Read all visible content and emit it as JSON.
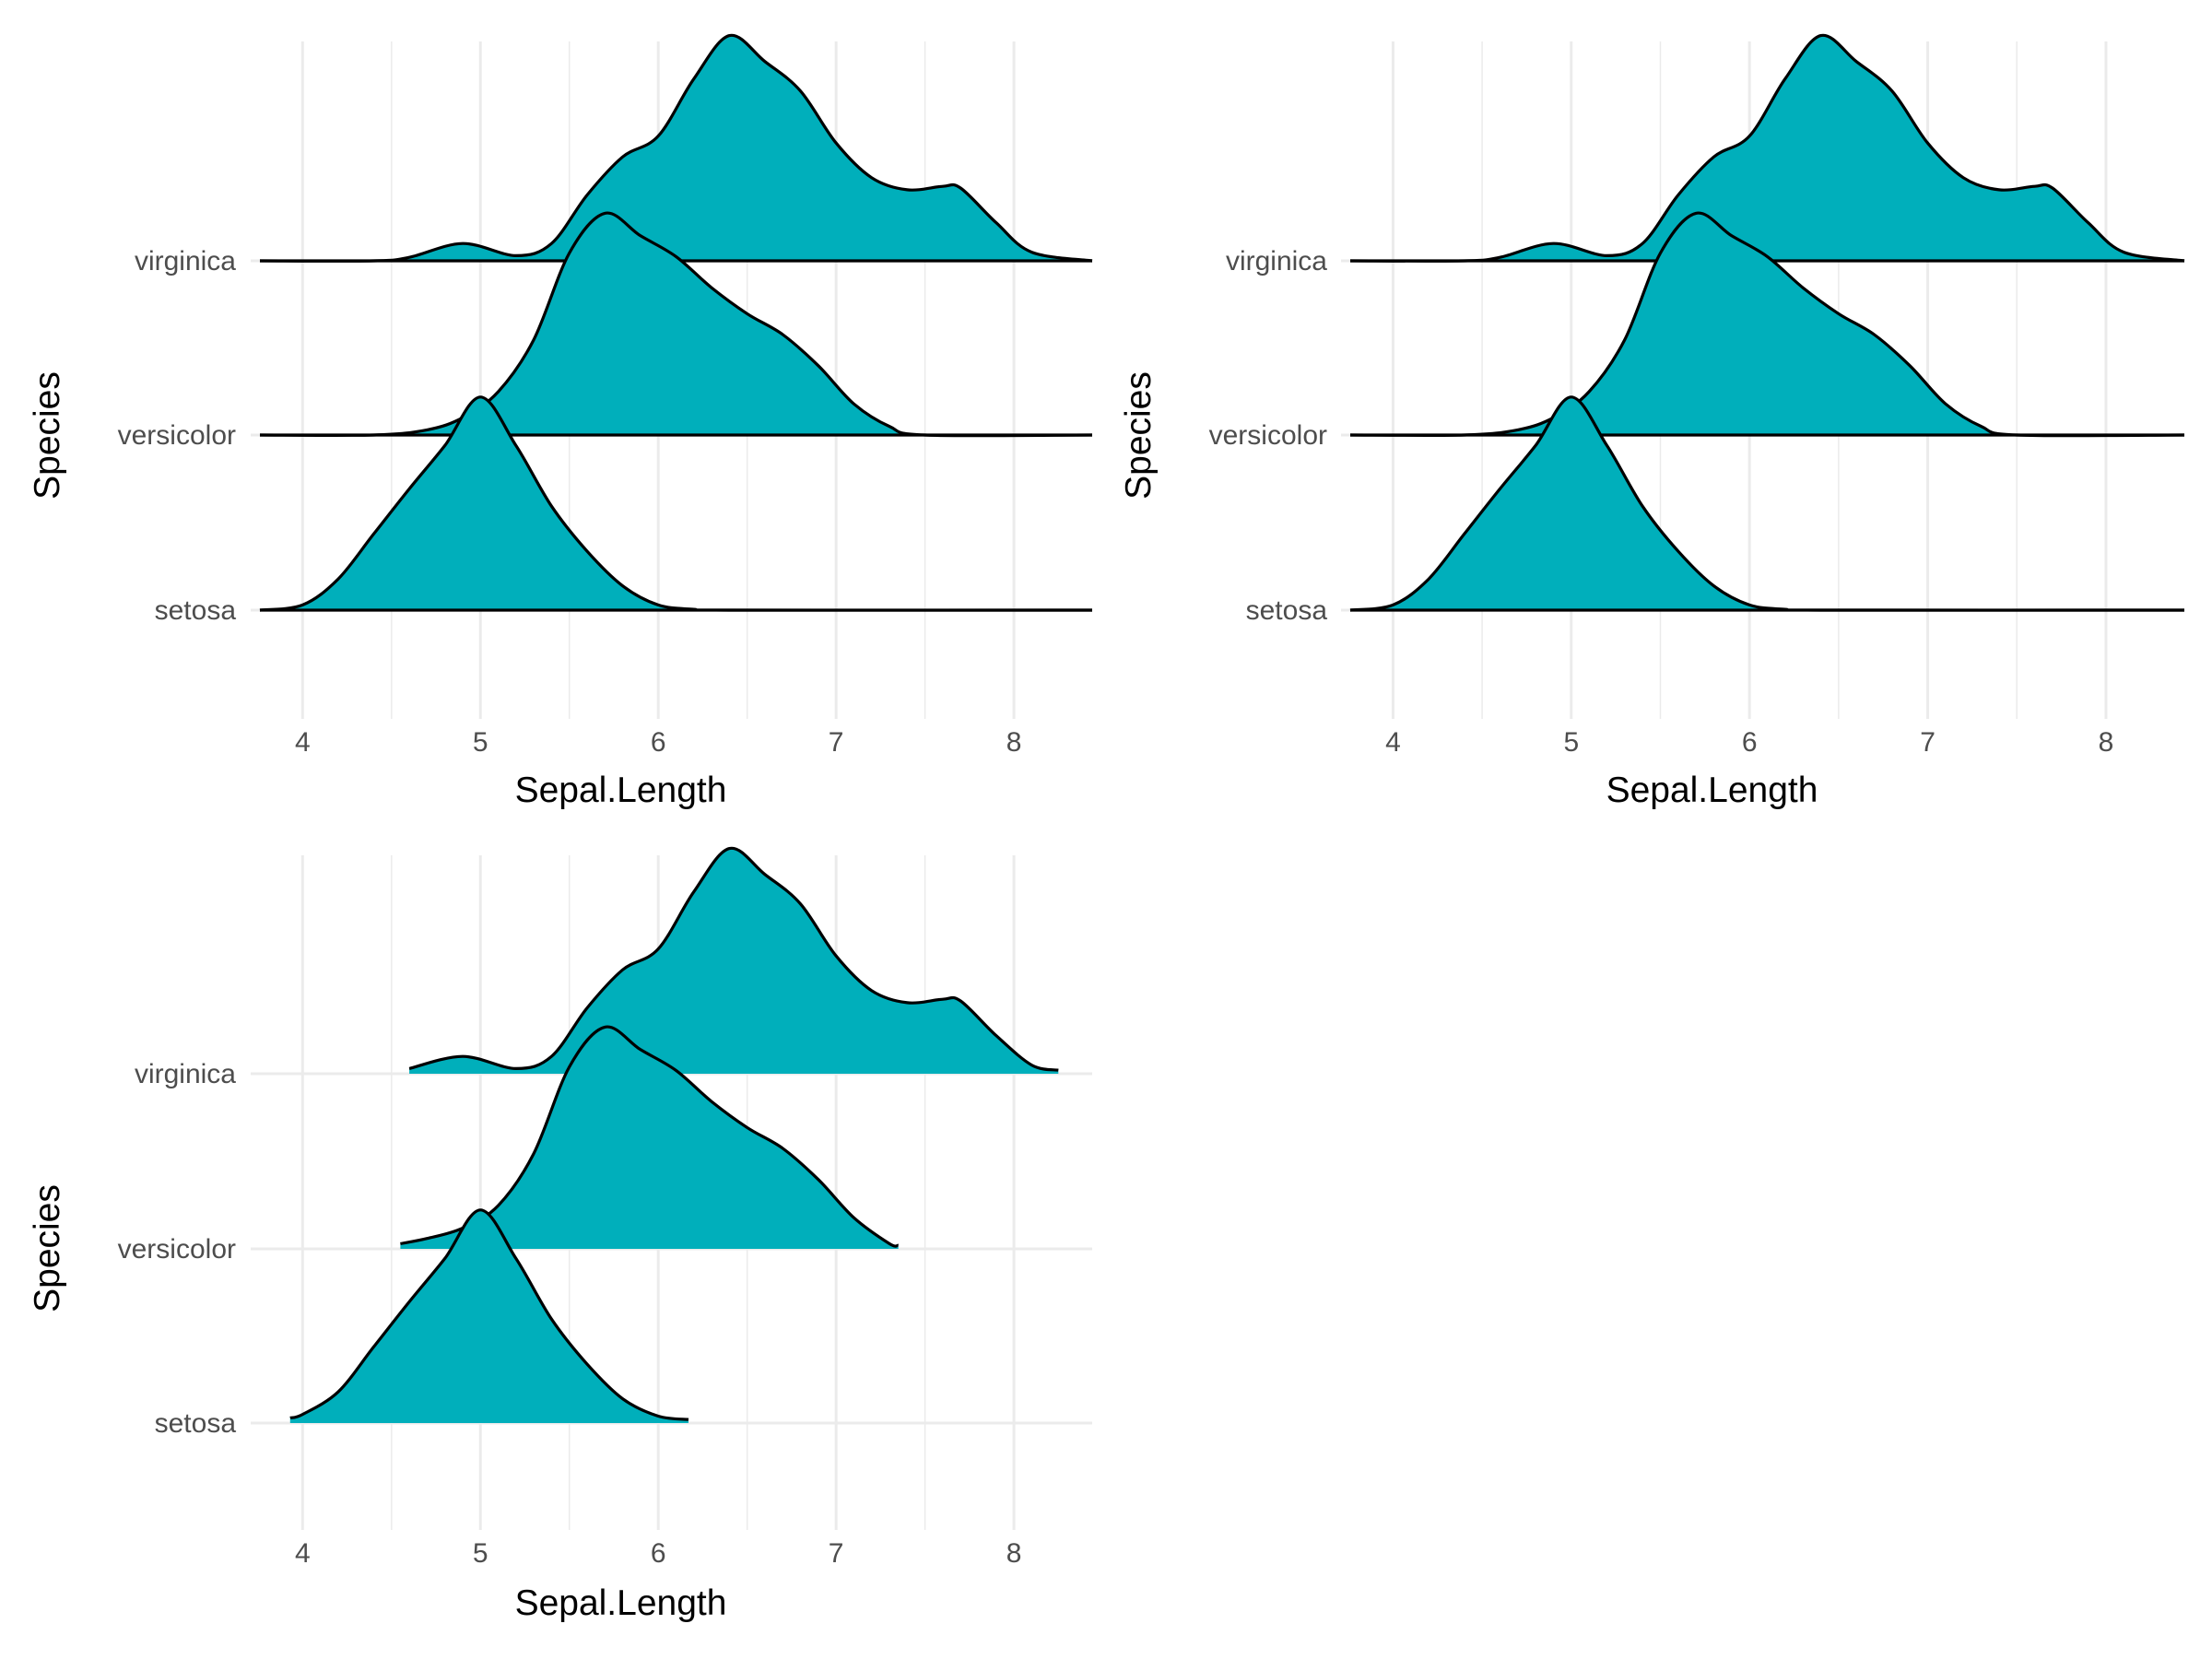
{
  "colors": {
    "fill": "#00AFBB",
    "outline": "#000000",
    "grid": "#EBEBEB",
    "tick_text": "#4D4D4D"
  },
  "chart_data": [
    {
      "type": "ridgeline",
      "variant": "full-range densities, baseline drawn",
      "xlabel": "Sepal.Length",
      "ylabel": "Species",
      "xlim": [
        3.76,
        8.44
      ],
      "x_ticks": [
        4,
        5,
        6,
        7,
        8
      ],
      "categories": [
        "setosa",
        "versicolor",
        "virginica"
      ],
      "grid": true,
      "fill_color": "#00AFBB",
      "series": [
        {
          "name": "setosa",
          "x": [
            3.76,
            4.0,
            4.2,
            4.4,
            4.6,
            4.8,
            5.0,
            5.2,
            5.4,
            5.6,
            5.8,
            6.0,
            6.2,
            6.4,
            8.44
          ],
          "density": [
            0.0,
            0.03,
            0.18,
            0.44,
            0.7,
            0.95,
            1.23,
            0.95,
            0.6,
            0.34,
            0.14,
            0.03,
            0.005,
            0.0,
            0.0
          ]
        },
        {
          "name": "versicolor",
          "x": [
            3.76,
            4.4,
            4.7,
            4.9,
            5.1,
            5.3,
            5.5,
            5.7,
            5.9,
            6.1,
            6.3,
            6.5,
            6.7,
            6.9,
            7.1,
            7.3,
            7.5,
            8.44
          ],
          "density": [
            0.0,
            0.0,
            0.03,
            0.1,
            0.25,
            0.55,
            1.05,
            1.28,
            1.15,
            1.03,
            0.85,
            0.7,
            0.58,
            0.4,
            0.18,
            0.05,
            0.0,
            0.0
          ]
        },
        {
          "name": "virginica",
          "x": [
            3.76,
            4.4,
            4.6,
            4.9,
            5.2,
            5.4,
            5.6,
            5.8,
            6.0,
            6.2,
            6.4,
            6.6,
            6.8,
            7.0,
            7.2,
            7.4,
            7.6,
            7.7,
            7.9,
            8.1,
            8.44
          ],
          "density": [
            0.0,
            0.0,
            0.02,
            0.1,
            0.03,
            0.1,
            0.38,
            0.6,
            0.72,
            1.05,
            1.3,
            1.15,
            0.98,
            0.68,
            0.48,
            0.41,
            0.43,
            0.42,
            0.22,
            0.05,
            0.0
          ]
        }
      ]
    },
    {
      "type": "ridgeline",
      "variant": "full-range densities, baseline drawn",
      "xlabel": "Sepal.Length",
      "ylabel": "Species",
      "xlim": [
        3.76,
        8.44
      ],
      "x_ticks": [
        4,
        5,
        6,
        7,
        8
      ],
      "categories": [
        "setosa",
        "versicolor",
        "virginica"
      ],
      "grid": true,
      "fill_color": "#00AFBB",
      "series": [
        {
          "name": "setosa",
          "x": [
            3.76,
            4.0,
            4.2,
            4.4,
            4.6,
            4.8,
            5.0,
            5.2,
            5.4,
            5.6,
            5.8,
            6.0,
            6.2,
            6.4,
            8.44
          ],
          "density": [
            0.0,
            0.03,
            0.18,
            0.44,
            0.7,
            0.95,
            1.23,
            0.95,
            0.6,
            0.34,
            0.14,
            0.03,
            0.005,
            0.0,
            0.0
          ]
        },
        {
          "name": "versicolor",
          "x": [
            3.76,
            4.4,
            4.7,
            4.9,
            5.1,
            5.3,
            5.5,
            5.7,
            5.9,
            6.1,
            6.3,
            6.5,
            6.7,
            6.9,
            7.1,
            7.3,
            7.5,
            8.44
          ],
          "density": [
            0.0,
            0.0,
            0.03,
            0.1,
            0.25,
            0.55,
            1.05,
            1.28,
            1.15,
            1.03,
            0.85,
            0.7,
            0.58,
            0.4,
            0.18,
            0.05,
            0.0,
            0.0
          ]
        },
        {
          "name": "virginica",
          "x": [
            3.76,
            4.4,
            4.6,
            4.9,
            5.2,
            5.4,
            5.6,
            5.8,
            6.0,
            6.2,
            6.4,
            6.6,
            6.8,
            7.0,
            7.2,
            7.4,
            7.6,
            7.7,
            7.9,
            8.1,
            8.44
          ],
          "density": [
            0.0,
            0.0,
            0.02,
            0.1,
            0.03,
            0.1,
            0.38,
            0.6,
            0.72,
            1.05,
            1.3,
            1.15,
            0.98,
            0.68,
            0.48,
            0.41,
            0.43,
            0.42,
            0.22,
            0.05,
            0.0
          ]
        }
      ]
    },
    {
      "type": "ridgeline",
      "variant": "densities trimmed to data range",
      "xlabel": "Sepal.Length",
      "ylabel": "Species",
      "xlim": [
        3.76,
        8.44
      ],
      "x_ticks": [
        4,
        5,
        6,
        7,
        8
      ],
      "categories": [
        "setosa",
        "versicolor",
        "virginica"
      ],
      "grid": true,
      "fill_color": "#00AFBB",
      "series": [
        {
          "name": "setosa",
          "x": [
            3.93,
            4.0,
            4.2,
            4.4,
            4.6,
            4.8,
            5.0,
            5.2,
            5.4,
            5.6,
            5.8,
            6.0,
            6.17
          ],
          "density": [
            0.03,
            0.05,
            0.18,
            0.44,
            0.7,
            0.95,
            1.23,
            0.95,
            0.6,
            0.34,
            0.14,
            0.04,
            0.02
          ]
        },
        {
          "name": "versicolor",
          "x": [
            4.55,
            4.7,
            4.9,
            5.1,
            5.3,
            5.5,
            5.7,
            5.9,
            6.1,
            6.3,
            6.5,
            6.7,
            6.9,
            7.1,
            7.3,
            7.35
          ],
          "density": [
            0.03,
            0.06,
            0.12,
            0.25,
            0.55,
            1.05,
            1.28,
            1.15,
            1.03,
            0.85,
            0.7,
            0.58,
            0.4,
            0.18,
            0.03,
            0.02
          ]
        },
        {
          "name": "virginica",
          "x": [
            4.6,
            4.9,
            5.2,
            5.4,
            5.6,
            5.8,
            6.0,
            6.2,
            6.4,
            6.6,
            6.8,
            7.0,
            7.2,
            7.4,
            7.6,
            7.7,
            7.9,
            8.1,
            8.25
          ],
          "density": [
            0.03,
            0.1,
            0.03,
            0.1,
            0.38,
            0.6,
            0.72,
            1.05,
            1.3,
            1.15,
            0.98,
            0.68,
            0.48,
            0.41,
            0.43,
            0.42,
            0.22,
            0.05,
            0.02
          ]
        }
      ]
    }
  ]
}
